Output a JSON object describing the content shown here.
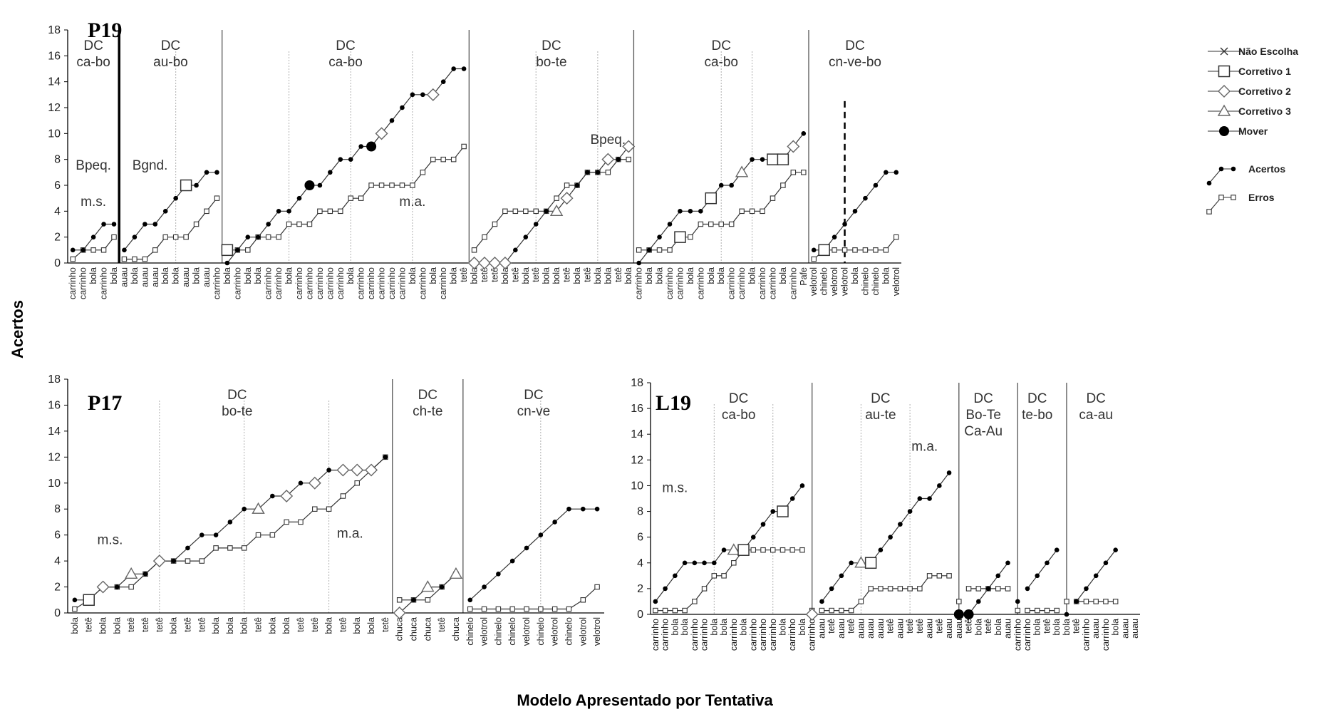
{
  "ylabel": "Acertos",
  "xlabel": "Modelo Apresentado por Tentativa",
  "legend": [
    {
      "label": "Não Escolha",
      "marker": "x"
    },
    {
      "label": "Corretivo 1",
      "marker": "square"
    },
    {
      "label": "Corretivo 2",
      "marker": "diamond"
    },
    {
      "label": "Corretivo 3",
      "marker": "triangle"
    },
    {
      "label": "Mover",
      "marker": "bigdot"
    },
    {
      "label": "Acertos",
      "marker": "dot"
    },
    {
      "label": "Erros",
      "marker": "smallsquare"
    }
  ],
  "colors": {
    "line": "#333333",
    "phase_line": "#555555",
    "sub_line": "#b0b0b0",
    "axis": "#000000"
  },
  "chart_data": [
    {
      "type": "line",
      "participant": "P19",
      "ylim": [
        0,
        18
      ],
      "yticks": [
        0,
        2,
        4,
        6,
        8,
        10,
        12,
        14,
        16,
        18
      ],
      "categories": [
        "carrinho",
        "carrinho",
        "bola",
        "carrinho",
        "bola",
        "auau",
        "bola",
        "auau",
        "auau",
        "bola",
        "bola",
        "auau",
        "bola",
        "auau",
        "carrinho",
        "bola",
        "carrinho",
        "bola",
        "bola",
        "carrinho",
        "carrinho",
        "bola",
        "carrinho",
        "carrinho",
        "carrinho",
        "carrinho",
        "carrinho",
        "bola",
        "carrinho",
        "carrinho",
        "carrinho",
        "carrinho",
        "carrinho",
        "bola",
        "carrinho",
        "bola",
        "carrinho",
        "bola",
        "tetê",
        "bola",
        "tetê",
        "tetê",
        "bola",
        "tetê",
        "bola",
        "tetê",
        "bola",
        "bola",
        "tetê",
        "bola",
        "tetê",
        "bola",
        "bola",
        "tetê",
        "bola",
        "carrinho",
        "bola",
        "bola",
        "carrinho",
        "carrinho",
        "bola",
        "carrinho",
        "bola",
        "bola",
        "carrinho",
        "carrinho",
        "bola",
        "carrinho",
        "carrinho",
        "bola",
        "carrinho",
        "Pafe",
        "velotrol",
        "chinelo",
        "velotrol",
        "velotrol",
        "bola",
        "chinelo",
        "chinelo",
        "bola",
        "velotrol"
      ],
      "acertos": [
        1,
        1,
        2,
        3,
        3,
        1,
        2,
        3,
        3,
        4,
        5,
        6,
        6,
        7,
        7,
        0,
        1,
        2,
        2,
        3,
        4,
        4,
        5,
        6,
        6,
        7,
        8,
        8,
        9,
        9,
        10,
        11,
        12,
        13,
        13,
        13,
        14,
        15,
        15,
        0,
        0,
        0,
        0,
        1,
        2,
        3,
        4,
        4,
        5,
        6,
        7,
        7,
        8,
        8,
        9,
        0,
        1,
        2,
        3,
        4,
        4,
        4,
        5,
        6,
        6,
        7,
        8,
        8,
        8,
        8,
        9,
        10,
        1,
        1,
        2,
        3,
        4,
        5,
        6,
        7,
        7
      ],
      "erros": [
        0.3,
        1,
        1,
        1,
        2,
        0.3,
        0.3,
        0.3,
        1,
        2,
        2,
        2,
        3,
        4,
        5,
        1,
        1,
        1,
        2,
        2,
        2,
        3,
        3,
        3,
        4,
        4,
        4,
        5,
        5,
        6,
        6,
        6,
        6,
        6,
        7,
        8,
        8,
        8,
        9,
        1,
        2,
        3,
        4,
        4,
        4,
        4,
        4,
        5,
        6,
        6,
        7,
        7,
        7,
        8,
        8,
        1,
        1,
        1,
        1,
        2,
        2,
        3,
        3,
        3,
        3,
        4,
        4,
        4,
        5,
        6,
        7,
        7,
        0.3,
        1,
        1,
        1,
        1,
        1,
        1,
        1,
        2
      ],
      "markers": [
        {
          "index": 15,
          "series": "erros",
          "type": "square"
        },
        {
          "index": 11,
          "series": "acertos",
          "type": "square"
        },
        {
          "index": 23,
          "series": "acertos",
          "type": "bigdot"
        },
        {
          "index": 29,
          "series": "acertos",
          "type": "bigdot"
        },
        {
          "index": 30,
          "series": "acertos",
          "type": "diamond"
        },
        {
          "index": 35,
          "series": "acertos",
          "type": "diamond"
        },
        {
          "index": 39,
          "series": "acertos",
          "type": "diamond"
        },
        {
          "index": 40,
          "series": "acertos",
          "type": "diamond"
        },
        {
          "index": 41,
          "series": "acertos",
          "type": "diamond"
        },
        {
          "index": 42,
          "series": "acertos",
          "type": "diamond"
        },
        {
          "index": 47,
          "series": "acertos",
          "type": "triangle"
        },
        {
          "index": 48,
          "series": "acertos",
          "type": "diamond"
        },
        {
          "index": 52,
          "series": "acertos",
          "type": "diamond"
        },
        {
          "index": 54,
          "series": "acertos",
          "type": "diamond"
        },
        {
          "index": 59,
          "series": "erros",
          "type": "square"
        },
        {
          "index": 62,
          "series": "acertos",
          "type": "square"
        },
        {
          "index": 65,
          "series": "acertos",
          "type": "triangle"
        },
        {
          "index": 68,
          "series": "acertos",
          "type": "square"
        },
        {
          "index": 69,
          "series": "acertos",
          "type": "square"
        },
        {
          "index": 70,
          "series": "acertos",
          "type": "diamond"
        },
        {
          "index": 73,
          "series": "acertos",
          "type": "square"
        }
      ],
      "phase_boundaries": [
        {
          "after": 4,
          "style": "thick"
        },
        {
          "after": 14,
          "style": "solid"
        },
        {
          "after": 38,
          "style": "solid"
        },
        {
          "after": 54,
          "style": "solid"
        },
        {
          "after": 71,
          "style": "solid"
        }
      ],
      "sub_boundaries": [
        {
          "after": 9.5,
          "style": "dotted"
        },
        {
          "after": 20.5,
          "style": "dotted"
        },
        {
          "after": 26.5,
          "style": "dotted"
        },
        {
          "after": 32.5,
          "style": "dotted"
        },
        {
          "after": 44.5,
          "style": "dotted"
        },
        {
          "after": 50.5,
          "style": "dotted"
        },
        {
          "after": 62.5,
          "style": "dotted"
        },
        {
          "after": 65.5,
          "style": "dotted"
        },
        {
          "after": 74.5,
          "style": "dashed"
        }
      ],
      "phase_labels": [
        {
          "text": "DC\nca-bo",
          "at": 2
        },
        {
          "text": "DC\nau-bo",
          "at": 9.5
        },
        {
          "text": "DC\nca-bo",
          "at": 26.5
        },
        {
          "text": "DC\nbo-te",
          "at": 46.5
        },
        {
          "text": "DC\nca-bo",
          "at": 63
        },
        {
          "text": "DC\ncn-ve-bo",
          "at": 76
        }
      ],
      "annotations": [
        {
          "text": "Bpeq.",
          "at": 2,
          "y": 7.2
        },
        {
          "text": "m.s.",
          "at": 2,
          "y": 4.4
        },
        {
          "text": "Bgnd.",
          "at": 7.5,
          "y": 7.2
        },
        {
          "text": "m.a.",
          "at": 33,
          "y": 4.4
        },
        {
          "text": "Bpeq.",
          "at": 52,
          "y": 9.2
        }
      ]
    },
    {
      "type": "line",
      "participant": "P17",
      "ylim": [
        0,
        18
      ],
      "yticks": [
        0,
        2,
        4,
        6,
        8,
        10,
        12,
        14,
        16,
        18
      ],
      "categories": [
        "bola",
        "tetê",
        "bola",
        "bola",
        "tetê",
        "tetê",
        "tetê",
        "bola",
        "tetê",
        "tetê",
        "bola",
        "bola",
        "bola",
        "tetê",
        "bola",
        "bola",
        "tetê",
        "tetê",
        "bola",
        "tetê",
        "bola",
        "bola",
        "tetê",
        "chuca",
        "chuca",
        "chuca",
        "tetê",
        "chuca",
        "chinelo",
        "velotrol",
        "chinelo",
        "chinelo",
        "velotrol",
        "chinelo",
        "velotrol",
        "chinelo",
        "velotrol",
        "velotrol"
      ],
      "acertos": [
        1,
        1,
        2,
        2,
        3,
        3,
        4,
        4,
        5,
        6,
        6,
        7,
        8,
        8,
        9,
        9,
        10,
        10,
        11,
        11,
        11,
        11,
        12,
        0,
        1,
        2,
        2,
        3,
        1,
        2,
        3,
        4,
        5,
        6,
        7,
        8,
        8,
        8
      ],
      "erros": [
        0.3,
        1,
        2,
        2,
        2,
        3,
        4,
        4,
        4,
        4,
        5,
        5,
        5,
        6,
        6,
        7,
        7,
        8,
        8,
        9,
        10,
        11,
        12,
        1,
        1,
        1,
        2,
        3,
        0.3,
        0.3,
        0.3,
        0.3,
        0.3,
        0.3,
        0.3,
        0.3,
        1,
        2
      ],
      "markers": [
        {
          "index": 1,
          "series": "acertos",
          "type": "square"
        },
        {
          "index": 2,
          "series": "acertos",
          "type": "diamond"
        },
        {
          "index": 4,
          "series": "acertos",
          "type": "triangle"
        },
        {
          "index": 6,
          "series": "acertos",
          "type": "diamond"
        },
        {
          "index": 13,
          "series": "acertos",
          "type": "triangle"
        },
        {
          "index": 15,
          "series": "acertos",
          "type": "diamond"
        },
        {
          "index": 17,
          "series": "acertos",
          "type": "diamond"
        },
        {
          "index": 19,
          "series": "acertos",
          "type": "diamond"
        },
        {
          "index": 20,
          "series": "acertos",
          "type": "diamond"
        },
        {
          "index": 21,
          "series": "acertos",
          "type": "diamond"
        },
        {
          "index": 23,
          "series": "acertos",
          "type": "diamond"
        },
        {
          "index": 25,
          "series": "acertos",
          "type": "triangle"
        },
        {
          "index": 27,
          "series": "acertos",
          "type": "triangle"
        }
      ],
      "phase_boundaries": [
        {
          "after": 22,
          "style": "solid"
        },
        {
          "after": 27,
          "style": "solid"
        }
      ],
      "sub_boundaries": [
        {
          "after": 5.5,
          "style": "dotted"
        },
        {
          "after": 11.5,
          "style": "dotted"
        },
        {
          "after": 17.5,
          "style": "dotted"
        },
        {
          "after": 32.5,
          "style": "dotted"
        }
      ],
      "phase_labels": [
        {
          "text": "DC\nbo-te",
          "at": 11.5
        },
        {
          "text": "DC\nch-te",
          "at": 25
        },
        {
          "text": "DC\ncn-ve",
          "at": 32.5
        }
      ],
      "annotations": [
        {
          "text": "m.s.",
          "at": 2.5,
          "y": 5.3
        },
        {
          "text": "m.a.",
          "at": 19.5,
          "y": 5.8
        }
      ]
    },
    {
      "type": "line",
      "participant": "L19",
      "ylim": [
        0,
        18
      ],
      "yticks": [
        0,
        2,
        4,
        6,
        8,
        10,
        12,
        14,
        16,
        18
      ],
      "categories": [
        "carrinho",
        "carrinho",
        "bola",
        "bola",
        "carrinho",
        "carrinho",
        "bola",
        "bola",
        "carrinho",
        "bola",
        "carrinho",
        "carrinho",
        "carrinho",
        "bola",
        "carrinho",
        "bola",
        "carrinho",
        "auau",
        "tetê",
        "auau",
        "tetê",
        "auau",
        "auau",
        "auau",
        "tetê",
        "auau",
        "tetê",
        "tetê",
        "auau",
        "tetê",
        "auau",
        "auau",
        "tetê",
        "bola",
        "tetê",
        "bola",
        "auau",
        "carrinho",
        "carrinho",
        "bola",
        "tetê",
        "bola",
        "bola",
        "tetê",
        "carrinho",
        "auau",
        "carrinho",
        "bola",
        "auau",
        "auau"
      ],
      "acertos": [
        1,
        2,
        3,
        4,
        4,
        4,
        4,
        5,
        5,
        5,
        6,
        7,
        8,
        8,
        9,
        10,
        0,
        1,
        2,
        3,
        4,
        4,
        4,
        5,
        6,
        7,
        8,
        9,
        9,
        10,
        11,
        0,
        0,
        1,
        2,
        3,
        4,
        1,
        2,
        3,
        4,
        5,
        0,
        1,
        2,
        3,
        4,
        5
      ],
      "erros": [
        0.3,
        0.3,
        0.3,
        0.3,
        1,
        2,
        3,
        3,
        4,
        5,
        5,
        5,
        5,
        5,
        5,
        5,
        0.3,
        0.3,
        0.3,
        0.3,
        0.3,
        1,
        2,
        2,
        2,
        2,
        2,
        2,
        3,
        3,
        3,
        1,
        2,
        2,
        2,
        2,
        2,
        0.3,
        0.3,
        0.3,
        0.3,
        0.3,
        1,
        1,
        1,
        1,
        1,
        1
      ],
      "markers": [
        {
          "index": 8,
          "series": "acertos",
          "type": "triangle"
        },
        {
          "index": 9,
          "series": "acertos",
          "type": "square"
        },
        {
          "index": 13,
          "series": "acertos",
          "type": "square"
        },
        {
          "index": 16,
          "series": "acertos",
          "type": "diamond"
        },
        {
          "index": 21,
          "series": "acertos",
          "type": "triangle"
        },
        {
          "index": 22,
          "series": "acertos",
          "type": "square"
        },
        {
          "index": 31,
          "series": "acertos",
          "type": "bigdot"
        },
        {
          "index": 32,
          "series": "acertos",
          "type": "bigdot"
        }
      ],
      "phase_boundaries": [
        {
          "after": 15.5,
          "style": "solid"
        },
        {
          "after": 30.5,
          "style": "solid"
        },
        {
          "after": 36.5,
          "style": "solid"
        },
        {
          "after": 41.5,
          "style": "solid"
        }
      ],
      "sub_boundaries": [
        {
          "after": 5.5,
          "style": "dotted"
        },
        {
          "after": 11.5,
          "style": "dotted"
        },
        {
          "after": 20.5,
          "style": "dotted"
        },
        {
          "after": 25.5,
          "style": "dotted"
        }
      ],
      "phase_labels": [
        {
          "text": "DC\nca-bo",
          "at": 8.5
        },
        {
          "text": "DC\nau-te",
          "at": 23
        },
        {
          "text": "DC\nBo-Te\nCa-Au",
          "at": 33.5
        },
        {
          "text": "DC\nte-bo",
          "at": 39
        },
        {
          "text": "DC\nca-au",
          "at": 45
        }
      ],
      "annotations": [
        {
          "text": "m.s.",
          "at": 2,
          "y": 9.5
        },
        {
          "text": "m.a.",
          "at": 27.5,
          "y": 12.7
        }
      ]
    }
  ]
}
